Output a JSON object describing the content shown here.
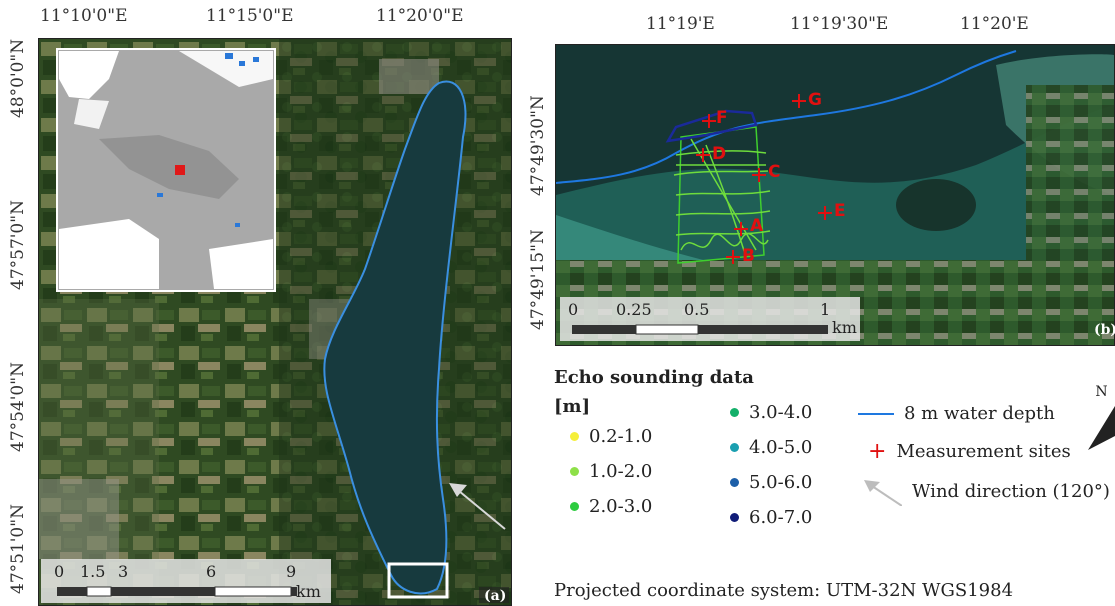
{
  "map_a": {
    "top_ticks": [
      "11°10'0\"E",
      "11°15'0\"E",
      "11°20'0\"E"
    ],
    "left_ticks": [
      "48°0'0\"N",
      "47°57'0\"N",
      "47°54'0\"N",
      "47°51'0\"N"
    ],
    "scale": {
      "labels": [
        "0",
        "1.5",
        "3",
        "6",
        "9"
      ],
      "unit": "km"
    },
    "panel_label": "(a)"
  },
  "map_b": {
    "top_ticks": [
      "11°19'E",
      "11°19'30\"E",
      "11°20'E"
    ],
    "left_ticks": [
      "47°49'30\"N",
      "47°49'15\"N"
    ],
    "scale": {
      "labels": [
        "0",
        "0.25",
        "0.5",
        "1"
      ],
      "unit": "km"
    },
    "panel_label": "(b)",
    "sites": [
      "A",
      "B",
      "C",
      "D",
      "E",
      "F",
      "G"
    ]
  },
  "legend": {
    "title": "Echo sounding data",
    "unit": "[m]",
    "depth_classes": [
      {
        "label": "0.2-1.0",
        "color": "#f5ef3a"
      },
      {
        "label": "1.0-2.0",
        "color": "#8ee048"
      },
      {
        "label": "2.0-3.0",
        "color": "#2ecc40"
      },
      {
        "label": "3.0-4.0",
        "color": "#14b06a"
      },
      {
        "label": "4.0-5.0",
        "color": "#1a9fb0"
      },
      {
        "label": "5.0-6.0",
        "color": "#1d5fa8"
      },
      {
        "label": "6.0-7.0",
        "color": "#101c78"
      }
    ],
    "line_label": "8 m water depth",
    "sites_label": "Measurement sites",
    "wind_label": "Wind direction (120°)",
    "north": "N",
    "crs": "Projected coordinate system: UTM-32N WGS1984"
  },
  "colors": {
    "lake": "#173a3e",
    "land": "#2f4a22",
    "depth_line": "#1e78e0",
    "site_marker": "#e01010"
  }
}
